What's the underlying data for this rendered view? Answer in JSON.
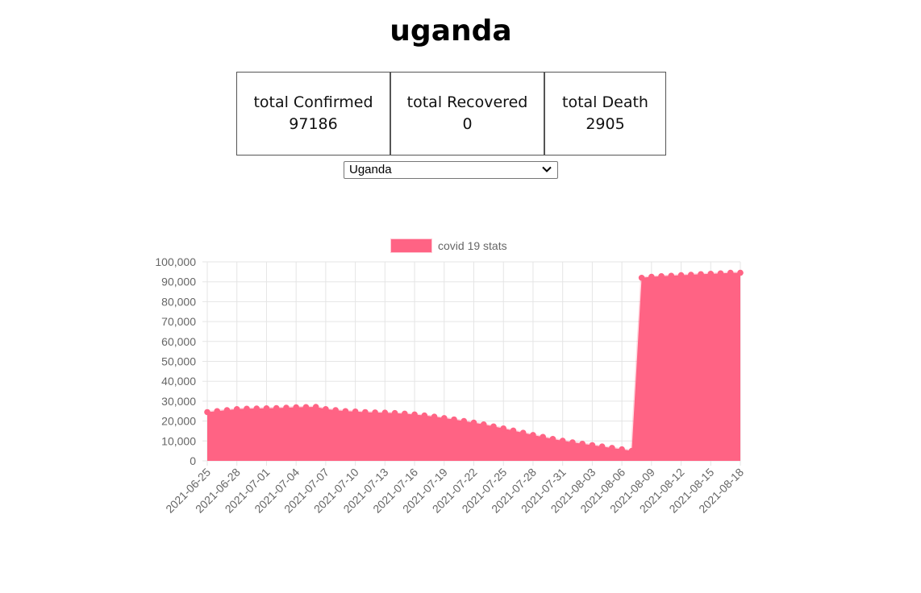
{
  "title": "uganda",
  "stats": [
    {
      "label": "total Confirmed",
      "value": "97186"
    },
    {
      "label": "total Recovered",
      "value": "0"
    },
    {
      "label": "total Death",
      "value": "2905"
    }
  ],
  "country_select": {
    "selected": "Uganda"
  },
  "colors": {
    "fill": "#ff6384",
    "point": "#ff6384",
    "grid": "#e5e5e5",
    "tick_text": "#666666"
  },
  "chart_data": {
    "type": "area",
    "legend": {
      "label": "covid 19 stats",
      "position": "top"
    },
    "series": [
      {
        "name": "covid 19 stats"
      }
    ],
    "ylim": [
      0,
      100000
    ],
    "y_ticks": [
      "100,000",
      "90,000",
      "80,000",
      "70,000",
      "60,000",
      "50,000",
      "40,000",
      "30,000",
      "20,000",
      "10,000",
      "0"
    ],
    "x_tick_labels": [
      "2021-06-25",
      "2021-06-28",
      "2021-07-01",
      "2021-07-04",
      "2021-07-07",
      "2021-07-10",
      "2021-07-13",
      "2021-07-16",
      "2021-07-19",
      "2021-07-22",
      "2021-07-25",
      "2021-07-28",
      "2021-07-31",
      "2021-08-03",
      "2021-08-06",
      "2021-08-09",
      "2021-08-12",
      "2021-08-15",
      "2021-08-18"
    ],
    "x": [
      "2021-06-25",
      "2021-06-26",
      "2021-06-27",
      "2021-06-28",
      "2021-06-29",
      "2021-06-30",
      "2021-07-01",
      "2021-07-02",
      "2021-07-03",
      "2021-07-04",
      "2021-07-05",
      "2021-07-06",
      "2021-07-07",
      "2021-07-08",
      "2021-07-09",
      "2021-07-10",
      "2021-07-11",
      "2021-07-12",
      "2021-07-13",
      "2021-07-14",
      "2021-07-15",
      "2021-07-16",
      "2021-07-17",
      "2021-07-18",
      "2021-07-19",
      "2021-07-20",
      "2021-07-21",
      "2021-07-22",
      "2021-07-23",
      "2021-07-24",
      "2021-07-25",
      "2021-07-26",
      "2021-07-27",
      "2021-07-28",
      "2021-07-29",
      "2021-07-30",
      "2021-07-31",
      "2021-08-01",
      "2021-08-02",
      "2021-08-03",
      "2021-08-04",
      "2021-08-05",
      "2021-08-06",
      "2021-08-07",
      "2021-08-08",
      "2021-08-09",
      "2021-08-10",
      "2021-08-11",
      "2021-08-12",
      "2021-08-13",
      "2021-08-14",
      "2021-08-15",
      "2021-08-16",
      "2021-08-17",
      "2021-08-18"
    ],
    "values": [
      24500,
      25000,
      25500,
      26000,
      26200,
      26300,
      26400,
      26500,
      26700,
      26900,
      27000,
      27100,
      26000,
      25500,
      25000,
      24800,
      24500,
      24300,
      24200,
      24000,
      23700,
      23300,
      22800,
      22200,
      21500,
      20800,
      20000,
      19200,
      18300,
      17300,
      16300,
      15200,
      14100,
      13000,
      12000,
      11000,
      10100,
      9300,
      8600,
      7900,
      7200,
      6500,
      5800,
      5000,
      92000,
      92500,
      92800,
      93000,
      93300,
      93500,
      93800,
      94000,
      94200,
      94500,
      94500
    ]
  }
}
